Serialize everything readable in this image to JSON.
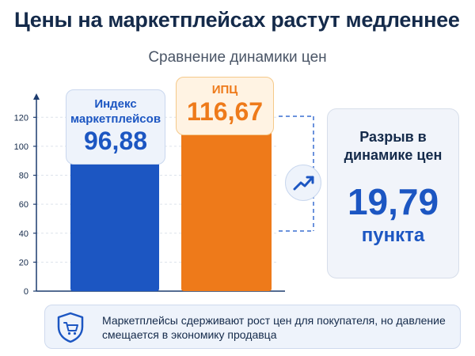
{
  "title": "Цены на маркетплейсах растут медленнее",
  "subtitle": "Сравнение динамики цен",
  "chart_data": {
    "type": "bar",
    "categories": [
      "Индекс маркетплейсов",
      "ИПЦ"
    ],
    "values": [
      96.88,
      116.67
    ],
    "value_labels": [
      "96,88",
      "116,67"
    ],
    "ylim": [
      0,
      130
    ],
    "yticks": [
      0,
      20,
      40,
      60,
      80,
      100,
      120
    ],
    "colors": [
      "#1c56c2",
      "#ee7a1a"
    ],
    "grid": false
  },
  "gap": {
    "title": "Разрыв в динамике цен",
    "value": "19,79",
    "unit": "пункта"
  },
  "note": {
    "text": "Маркетплейсы сдерживают рост цен для покупателя, но давление смещается в экономику продавца"
  },
  "icons": {
    "trend": "trend-up-icon",
    "shield": "shield-cart-icon"
  },
  "colors": {
    "accent_blue": "#1c56c2",
    "accent_orange": "#ee7a1a",
    "title": "#142a4a"
  }
}
